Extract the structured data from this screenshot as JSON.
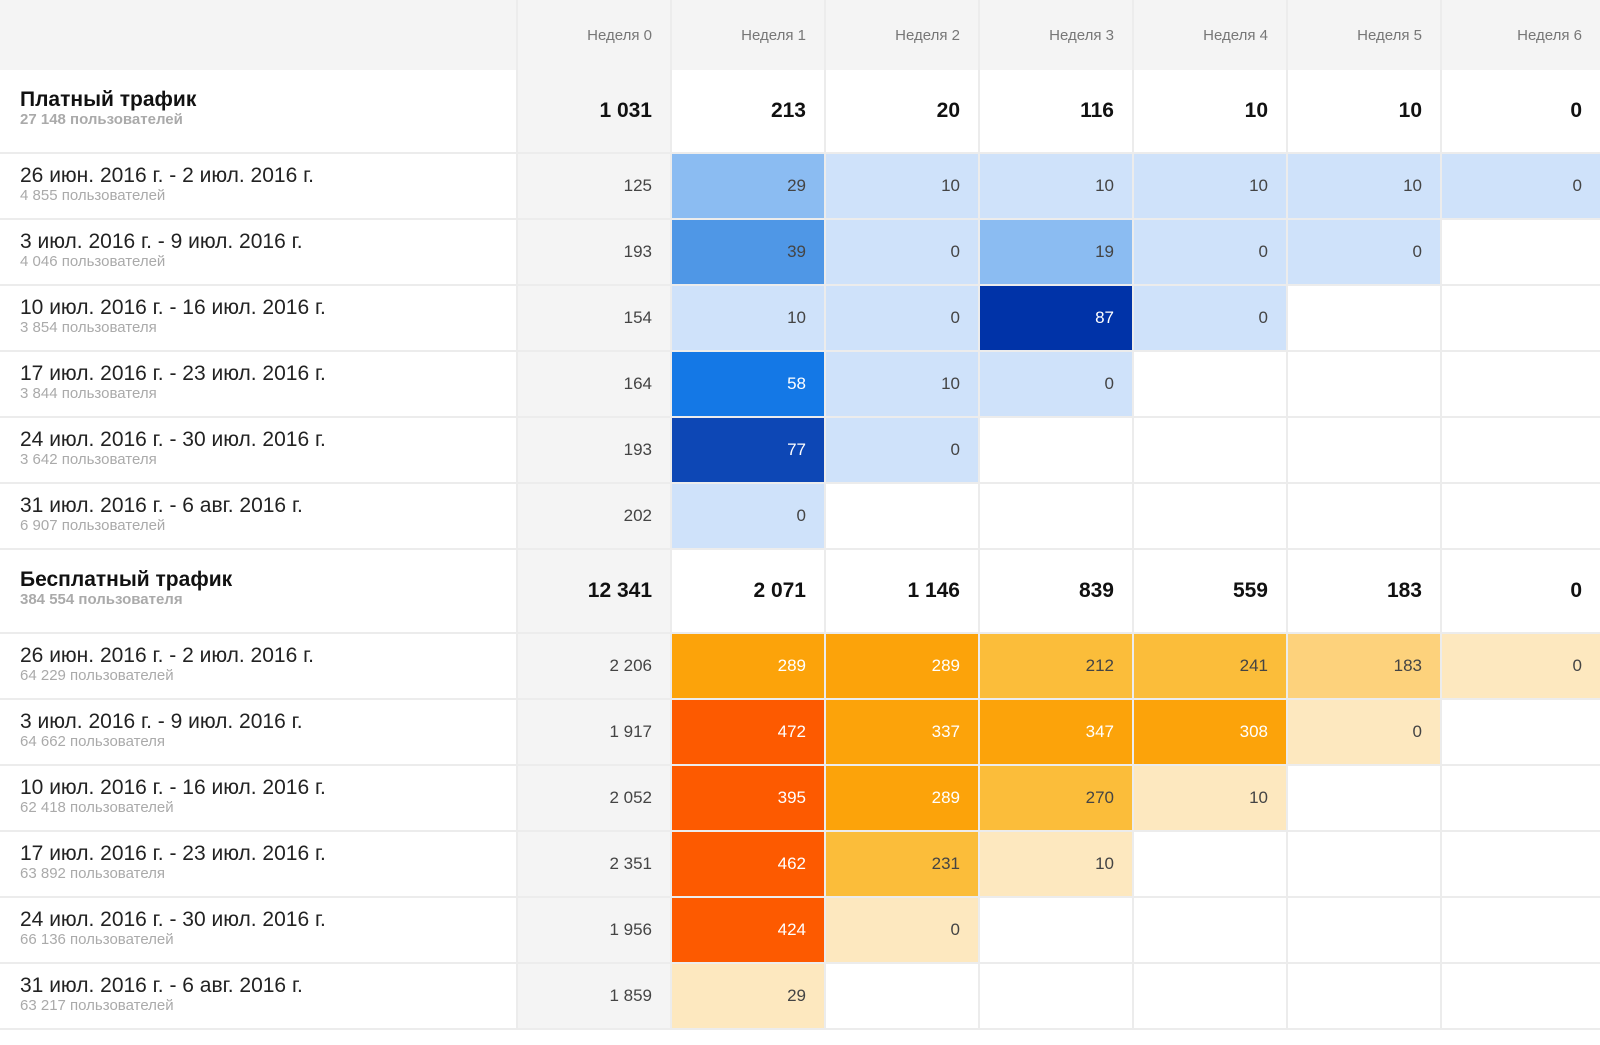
{
  "columns": [
    "Неделя 0",
    "Неделя 1",
    "Неделя 2",
    "Неделя 3",
    "Неделя 4",
    "Неделя 5",
    "Неделя 6"
  ],
  "groups": [
    {
      "title": "Платный трафик",
      "users": "27 148 пользователей",
      "totals": [
        "1 031",
        "213",
        "20",
        "116",
        "10",
        "10",
        "0"
      ],
      "palette": "blue",
      "rows": [
        {
          "period": "26 июн. 2016 г. - 2 июл. 2016 г.",
          "users": "4 855 пользователей",
          "values": [
            "125",
            "29",
            "10",
            "10",
            "10",
            "10",
            "0"
          ]
        },
        {
          "period": "3 июл. 2016 г. - 9 июл. 2016 г.",
          "users": "4 046 пользователей",
          "values": [
            "193",
            "39",
            "0",
            "19",
            "0",
            "0"
          ]
        },
        {
          "period": "10 июл. 2016 г. - 16 июл. 2016 г.",
          "users": "3 854 пользователя",
          "values": [
            "154",
            "10",
            "0",
            "87",
            "0"
          ]
        },
        {
          "period": "17 июл. 2016 г. - 23 июл. 2016 г.",
          "users": "3 844 пользователя",
          "values": [
            "164",
            "58",
            "10",
            "0"
          ]
        },
        {
          "period": "24 июл. 2016 г. - 30 июл. 2016 г.",
          "users": "3 642 пользователя",
          "values": [
            "193",
            "77",
            "0"
          ]
        },
        {
          "period": "31 июл. 2016 г. - 6 авг. 2016 г.",
          "users": "6 907 пользователей",
          "values": [
            "202",
            "0"
          ]
        }
      ]
    },
    {
      "title": "Бесплатный трафик",
      "users": "384 554 пользователя",
      "totals": [
        "12 341",
        "2 071",
        "1 146",
        "839",
        "559",
        "183",
        "0"
      ],
      "palette": "orange",
      "rows": [
        {
          "period": "26 июн. 2016 г. - 2 июл. 2016 г.",
          "users": "64 229 пользователей",
          "values": [
            "2 206",
            "289",
            "289",
            "212",
            "241",
            "183",
            "0"
          ]
        },
        {
          "period": "3 июл. 2016 г. - 9 июл. 2016 г.",
          "users": "64 662 пользователя",
          "values": [
            "1 917",
            "472",
            "337",
            "347",
            "308",
            "0"
          ]
        },
        {
          "period": "10 июл. 2016 г. - 16 июл. 2016 г.",
          "users": "62 418 пользователей",
          "values": [
            "2 052",
            "395",
            "289",
            "270",
            "10"
          ]
        },
        {
          "period": "17 июл. 2016 г. - 23 июл. 2016 г.",
          "users": "63 892 пользователя",
          "values": [
            "2 351",
            "462",
            "231",
            "10"
          ]
        },
        {
          "period": "24 июл. 2016 г. - 30 июл. 2016 г.",
          "users": "66 136 пользователей",
          "values": [
            "1 956",
            "424",
            "0"
          ]
        },
        {
          "period": "31 июл. 2016 г. - 6 авг. 2016 г.",
          "users": "63 217 пользователей",
          "values": [
            "1 859",
            "29"
          ]
        }
      ]
    }
  ],
  "colors": {
    "blue": [
      "#cfe2fa",
      "#8bbcf2",
      "#4f97e6",
      "#1478e6",
      "#0d47b5",
      "#0033a8"
    ],
    "orange": [
      "#fde8bf",
      "#fdd27c",
      "#fbbd3a",
      "#fca30a",
      "#fd5a00"
    ]
  }
}
